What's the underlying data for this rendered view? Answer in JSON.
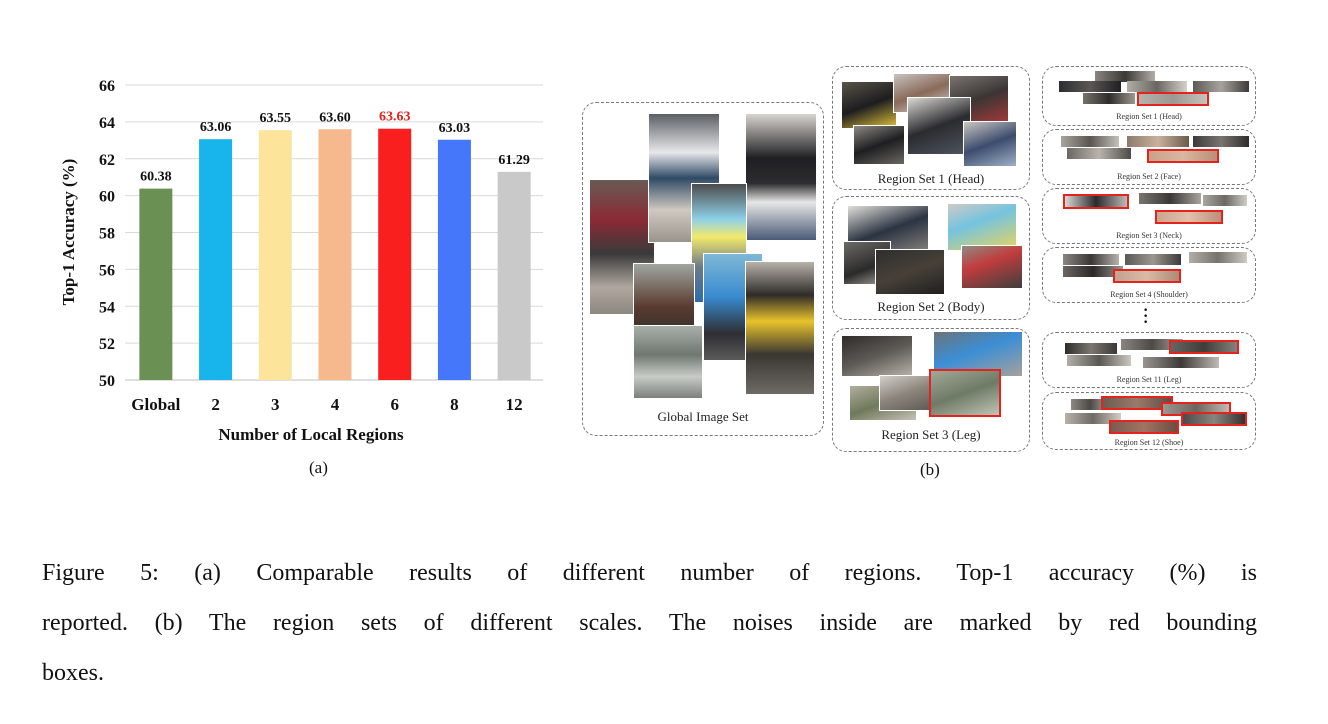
{
  "chart_data": {
    "type": "bar",
    "categories": [
      "Global",
      "2",
      "3",
      "4",
      "6",
      "8",
      "12"
    ],
    "values": [
      60.38,
      63.06,
      63.55,
      63.6,
      63.63,
      63.03,
      61.29
    ],
    "value_labels": [
      "60.38",
      "63.06",
      "63.55",
      "63.60",
      "63.63",
      "63.03",
      "61.29"
    ],
    "colors": [
      "#6a9153",
      "#17b5ec",
      "#fde49b",
      "#f6b98e",
      "#fa1f1f",
      "#4577fa",
      "#c9c9c9"
    ],
    "highlight_index": 4,
    "highlight_label_color": "#e5231c",
    "xlabel": "Number of Local Regions",
    "ylabel": "Top-1 Accuracy (%)",
    "ylim": [
      50,
      66
    ],
    "yticks": [
      "50",
      "52",
      "54",
      "56",
      "58",
      "60",
      "62",
      "64",
      "66"
    ],
    "grid": true,
    "legend": "none"
  },
  "figure_a": {
    "label": "(a)"
  },
  "figure_b": {
    "label": "(b)",
    "global_set": "Global Image Set",
    "mid_sets": [
      "Region Set 1 (Head)",
      "Region Set 2 (Body)",
      "Region Set 3 (Leg)"
    ],
    "right_sets": [
      "Region Set 1 (Head)",
      "Region Set 2 (Face)",
      "Region Set 3 (Neck)",
      "Region Set 4 (Shoulder)",
      "Region Set 11 (Leg)",
      "Region Set 12 (Shoe)"
    ],
    "noise_color": "#e5231c"
  },
  "caption": {
    "line1": "Figure 5:  (a) Comparable results of different number of regions.  Top-1 accuracy (%) is",
    "line2": "reported.  (b) The region sets of different scales.  The noises inside are marked by red bounding",
    "line3": "boxes."
  }
}
